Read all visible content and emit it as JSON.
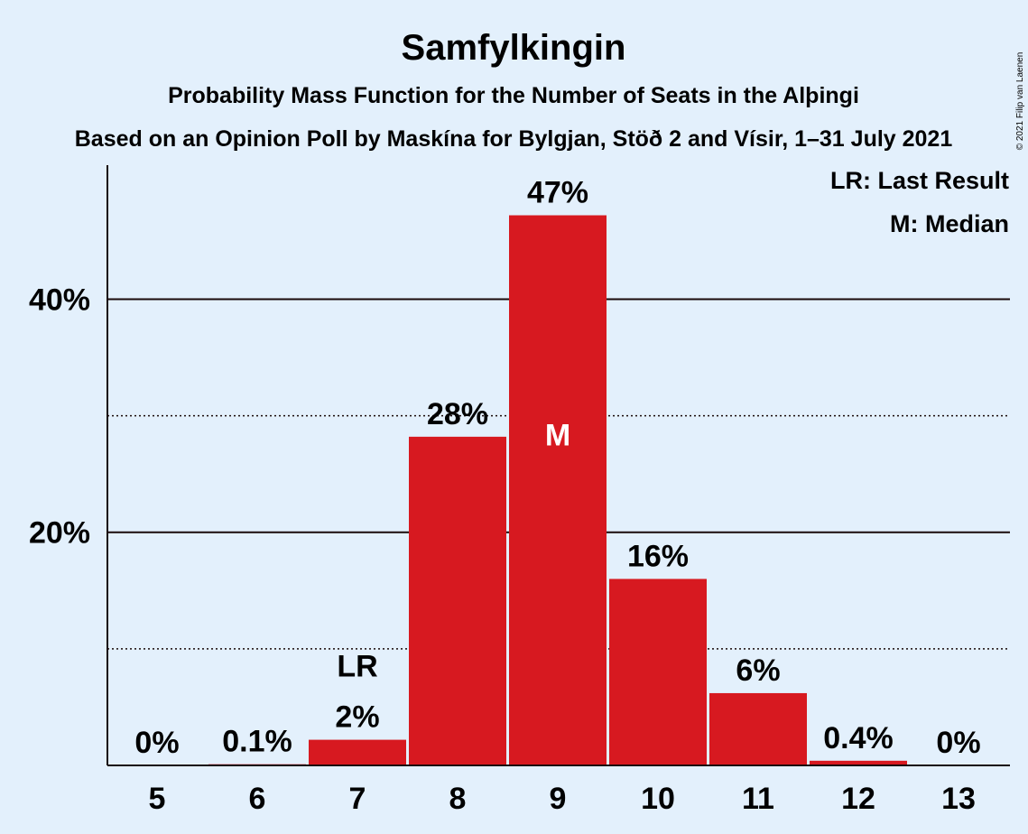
{
  "chart_data": {
    "type": "bar",
    "title": "Samfylkingin",
    "subtitle": "Probability Mass Function for the Number of Seats in the Alþingi",
    "subtitle2": "Based on an Opinion Poll by Maskína for Bylgjan, Stöð 2 and Vísir, 1–31 July 2021",
    "categories": [
      "5",
      "6",
      "7",
      "8",
      "9",
      "10",
      "11",
      "12",
      "13"
    ],
    "values": [
      0,
      0.1,
      2.2,
      28.2,
      47.2,
      16,
      6.2,
      0.4,
      0
    ],
    "data_labels": [
      "0%",
      "0.1%",
      "2%",
      "28%",
      "47%",
      "16%",
      "6%",
      "0.4%",
      "0%"
    ],
    "ylim": [
      0,
      51.5
    ],
    "y_ticks": [
      {
        "value": 20,
        "label": "20%"
      },
      {
        "value": 40,
        "label": "40%"
      }
    ],
    "minor_gridlines": [
      10,
      30
    ],
    "last_result_index": 2,
    "last_result_marker": "LR",
    "median_index": 4,
    "median_marker": "M",
    "bar_color": "#d71920",
    "legend": [
      "LR: Last Result",
      "M: Median"
    ],
    "legend_position": "top-right",
    "copyright": "© 2021 Filip van Laenen"
  }
}
